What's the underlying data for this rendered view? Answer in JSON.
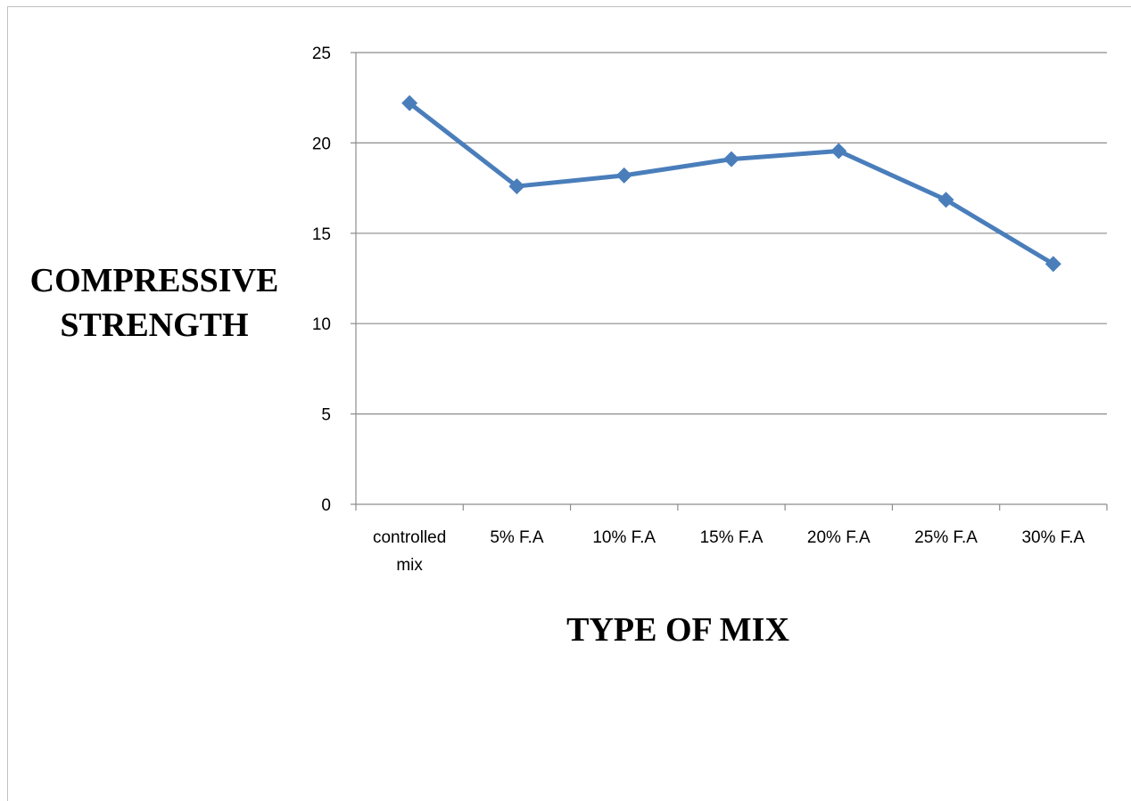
{
  "chart_data": {
    "type": "line",
    "title": "",
    "xlabel": "TYPE OF MIX",
    "ylabel_lines": [
      "COMPRESSIVE",
      "STRENGTH"
    ],
    "categories": [
      [
        "controlled",
        "mix"
      ],
      [
        "5% F.A"
      ],
      [
        "10% F.A"
      ],
      [
        "15% F.A"
      ],
      [
        "20% F.A"
      ],
      [
        "25% F.A"
      ],
      [
        "30% F.A"
      ]
    ],
    "series": [
      {
        "values": [
          22.2,
          17.6,
          18.2,
          19.1,
          19.55,
          16.85,
          13.3
        ],
        "color": "#4a7ebb",
        "marker": "diamond"
      }
    ],
    "ylim": [
      0,
      25
    ],
    "yticks": [
      0,
      5,
      10,
      15,
      20,
      25
    ],
    "grid": true,
    "legend": "none"
  }
}
